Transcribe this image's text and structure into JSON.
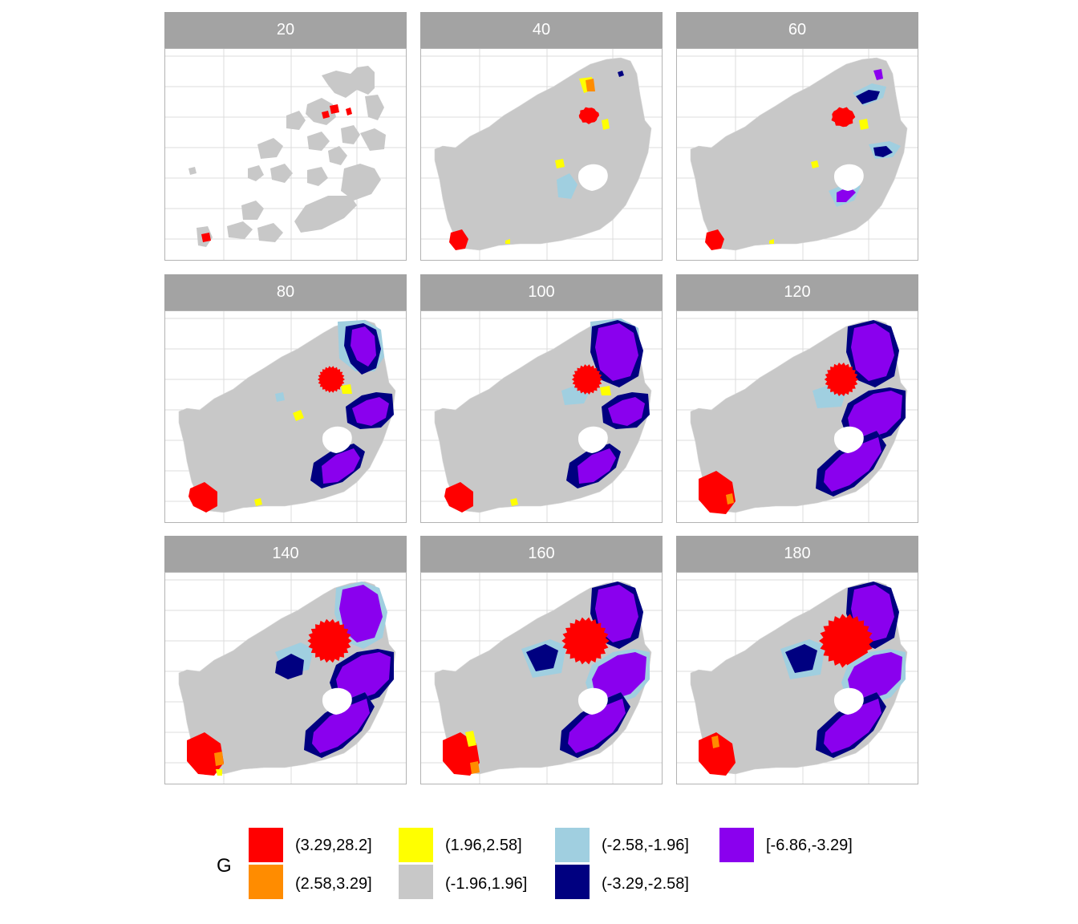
{
  "facets": [
    {
      "label": "20",
      "stage": 0
    },
    {
      "label": "40",
      "stage": 1
    },
    {
      "label": "60",
      "stage": 2
    },
    {
      "label": "80",
      "stage": 3
    },
    {
      "label": "100",
      "stage": 4
    },
    {
      "label": "120",
      "stage": 5
    },
    {
      "label": "140",
      "stage": 6
    },
    {
      "label": "160",
      "stage": 7
    },
    {
      "label": "180",
      "stage": 8
    }
  ],
  "legend": {
    "title": "G",
    "items": [
      {
        "label": "(3.29,28.2]",
        "color": "#ff0000"
      },
      {
        "label": "(2.58,3.29]",
        "color": "#ff8c00"
      },
      {
        "label": "(1.96,2.58]",
        "color": "#ffff00"
      },
      {
        "label": "(-1.96,1.96]",
        "color": "#c8c8c8"
      },
      {
        "label": "(-2.58,-1.96]",
        "color": "#a0cfe0"
      },
      {
        "label": "(-3.29,-2.58]",
        "color": "#000080"
      },
      {
        "label": "[-6.86,-3.29]",
        "color": "#8a00ee"
      }
    ]
  },
  "colors": {
    "strip": "#a3a3a3",
    "grid": "#dcdcdc",
    "panel_border": "#b3b3b3",
    "land": "#c8c8c8"
  }
}
